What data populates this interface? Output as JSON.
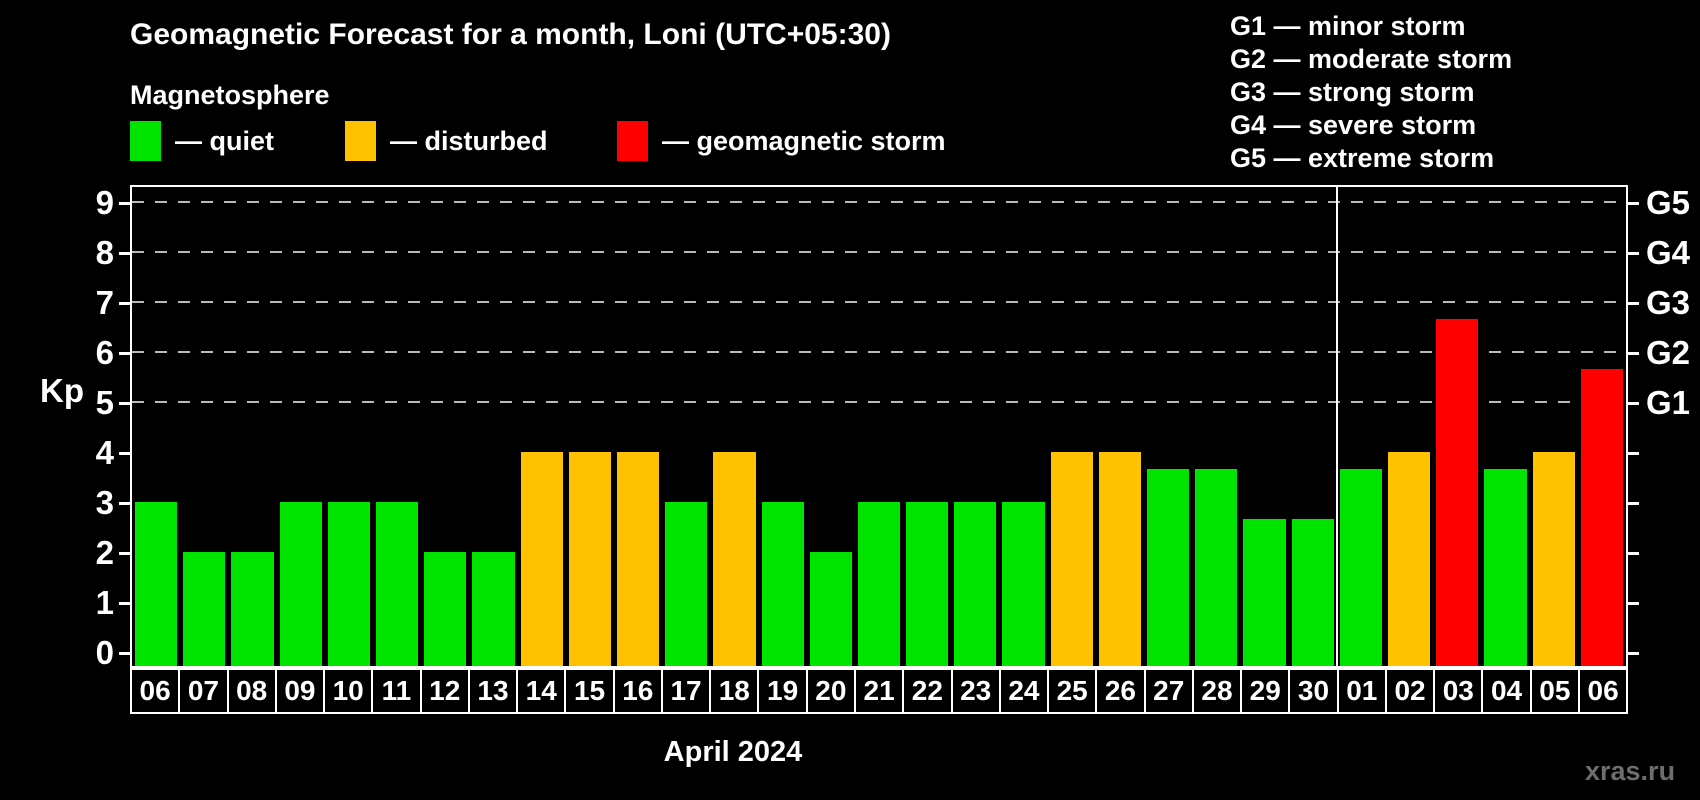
{
  "header": {
    "title": "Geomagnetic Forecast for a month, Loni (UTC+05:30)",
    "subtitle": "Magnetosphere"
  },
  "legend": {
    "items": [
      {
        "key": "quiet",
        "label": "— quiet"
      },
      {
        "key": "disturbed",
        "label": "— disturbed"
      },
      {
        "key": "storm",
        "label": "— geomagnetic storm"
      }
    ]
  },
  "g_legend": {
    "lines": [
      "G1 — minor storm",
      "G2 — moderate storm",
      "G3 — strong storm",
      "G4 — severe storm",
      "G5 — extreme storm"
    ]
  },
  "chart_data": {
    "type": "bar",
    "title": "Geomagnetic Forecast for a month, Loni (UTC+05:30)",
    "ylabel": "Kp",
    "xlabel": "April 2024",
    "ylim": [
      0,
      9
    ],
    "grid": "dashed horizontal at Kp 5-9",
    "legend_position": "top-left",
    "y_ticks": [
      0,
      1,
      2,
      3,
      4,
      5,
      6,
      7,
      8,
      9
    ],
    "grid_levels": [
      5,
      6,
      7,
      8,
      9
    ],
    "right_axis_labels": [
      {
        "label": "G1",
        "kp": 5
      },
      {
        "label": "G2",
        "kp": 6
      },
      {
        "label": "G3",
        "kp": 7
      },
      {
        "label": "G4",
        "kp": 8
      },
      {
        "label": "G5",
        "kp": 9
      }
    ],
    "categories": [
      "06",
      "07",
      "08",
      "09",
      "10",
      "11",
      "12",
      "13",
      "14",
      "15",
      "16",
      "17",
      "18",
      "19",
      "20",
      "21",
      "22",
      "23",
      "24",
      "25",
      "26",
      "27",
      "28",
      "29",
      "30",
      "01",
      "02",
      "03",
      "04",
      "05",
      "06"
    ],
    "values": [
      3,
      2,
      2,
      3,
      3,
      3,
      2,
      2,
      4,
      4,
      4,
      3,
      4,
      3,
      2,
      3,
      3,
      3,
      3,
      4,
      4,
      3.67,
      3.67,
      2.67,
      2.67,
      3.67,
      4,
      6.67,
      3.67,
      4,
      5.67
    ],
    "status": [
      "quiet",
      "quiet",
      "quiet",
      "quiet",
      "quiet",
      "quiet",
      "quiet",
      "quiet",
      "disturbed",
      "disturbed",
      "disturbed",
      "quiet",
      "disturbed",
      "quiet",
      "quiet",
      "quiet",
      "quiet",
      "quiet",
      "quiet",
      "disturbed",
      "disturbed",
      "quiet",
      "quiet",
      "quiet",
      "quiet",
      "quiet",
      "disturbed",
      "storm",
      "quiet",
      "disturbed",
      "storm"
    ],
    "colors": {
      "quiet": "#00e400",
      "disturbed": "#ffc200",
      "storm": "#ff0000"
    },
    "month_separator_index": 25
  },
  "footer": {
    "watermark": "xras.ru"
  }
}
